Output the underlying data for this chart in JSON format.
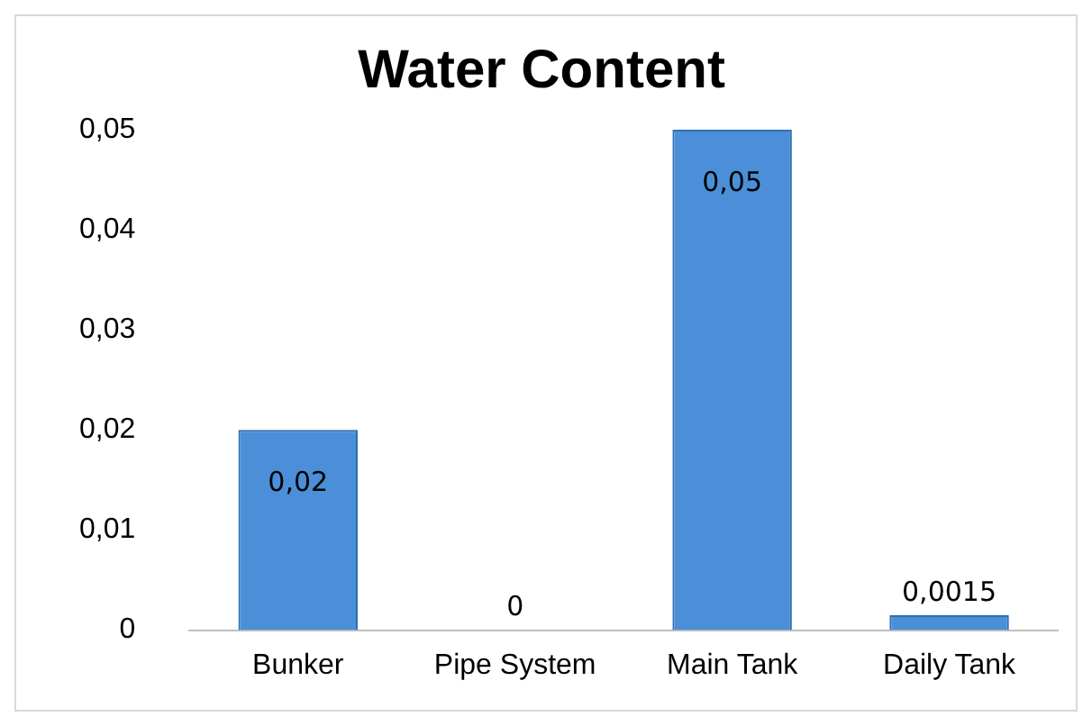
{
  "chart_data": {
    "type": "bar",
    "title": "Water Content",
    "categories": [
      "Bunker",
      "Pipe System",
      "Main Tank",
      "Daily Tank"
    ],
    "values": [
      0.02,
      0,
      0.05,
      0.0015
    ],
    "value_labels": [
      "0,02",
      "0",
      "0,05",
      "0,0015"
    ],
    "color": "#4a8fd8",
    "ylim": [
      0,
      0.05
    ],
    "yticks": [
      {
        "value": 0,
        "label": "0"
      },
      {
        "value": 0.01,
        "label": "0,01"
      },
      {
        "value": 0.02,
        "label": "0,02"
      },
      {
        "value": 0.03,
        "label": "0,03"
      },
      {
        "value": 0.04,
        "label": "0,04"
      },
      {
        "value": 0.05,
        "label": "0,05"
      }
    ],
    "grid": false,
    "legend": false
  }
}
